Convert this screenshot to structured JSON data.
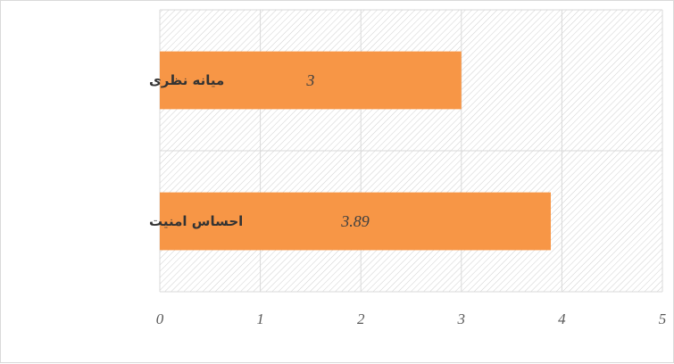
{
  "chart_data": {
    "type": "bar",
    "orientation": "horizontal",
    "categories": [
      "میانه نظری",
      "احساس امنیت"
    ],
    "values": [
      3,
      3.89
    ],
    "data_labels": [
      "3",
      "3.89"
    ],
    "xlim": [
      0,
      5
    ],
    "xticks": [
      "0",
      "1",
      "2",
      "3",
      "4",
      "5"
    ],
    "grid": true,
    "legend": "none",
    "title": "",
    "xlabel": "",
    "ylabel": ""
  },
  "colors": {
    "bar": "#f79646",
    "grid": "#d9d9d9",
    "hatch": "#d0d0d0",
    "frame": "#d9d9d9"
  }
}
